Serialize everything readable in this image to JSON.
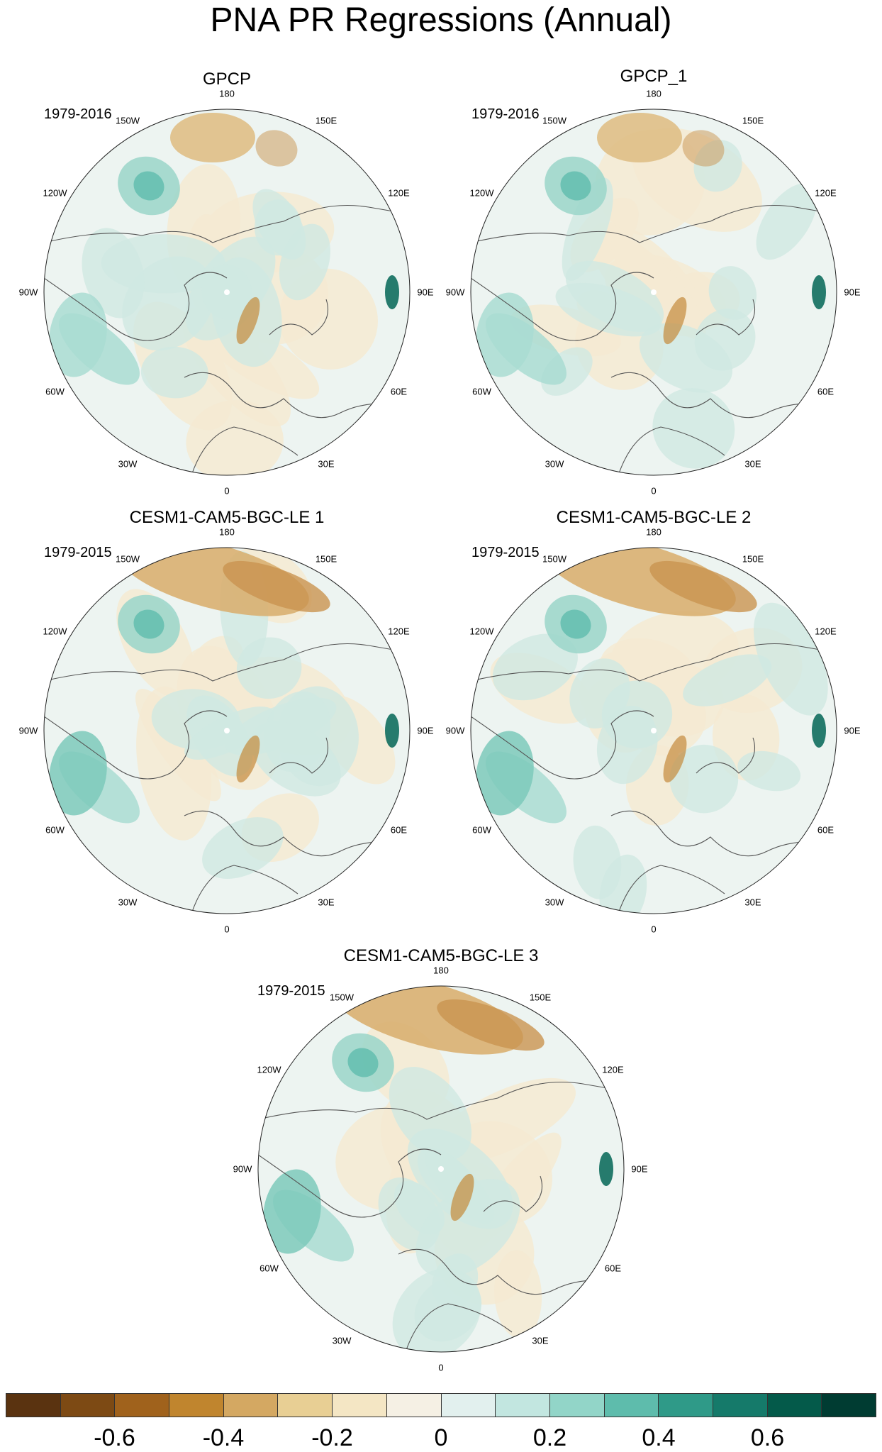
{
  "title": "PNA PR Regressions (Annual)",
  "lon_labels": [
    "180",
    "150E",
    "120E",
    "90E",
    "60E",
    "30E",
    "0",
    "30W",
    "60W",
    "90W",
    "120W",
    "150W"
  ],
  "panels": [
    {
      "title": "GPCP",
      "period": "1979-2016"
    },
    {
      "title": "GPCP_1",
      "period": "1979-2016"
    },
    {
      "title": "CESM1-CAM5-BGC-LE 1",
      "period": "1979-2015"
    },
    {
      "title": "CESM1-CAM5-BGC-LE 2",
      "period": "1979-2015"
    },
    {
      "title": "CESM1-CAM5-BGC-LE 3",
      "period": "1979-2015"
    }
  ],
  "colorbar": {
    "colors": [
      "#5a3310",
      "#7d4a14",
      "#a0621c",
      "#c0852e",
      "#d4a862",
      "#e8cf94",
      "#f4e6c4",
      "#f5f0e4",
      "#e2f0ee",
      "#c2e6e0",
      "#92d5c8",
      "#5ebcac",
      "#2f9a88",
      "#157a6a",
      "#045a4a",
      "#003c32"
    ],
    "labels": [
      "-0.6",
      "-0.4",
      "-0.2",
      "0",
      "0.2",
      "0.4",
      "0.6"
    ]
  }
}
